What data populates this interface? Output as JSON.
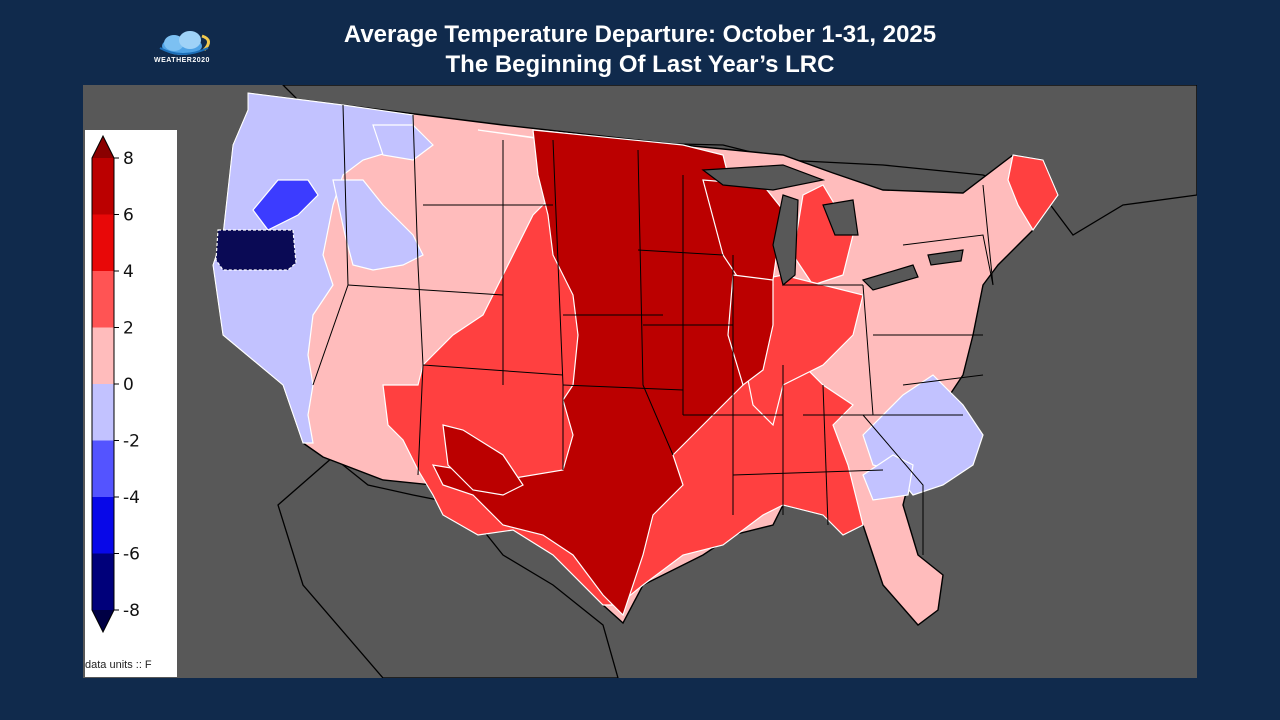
{
  "header": {
    "title_line1": "Average Temperature Departure: October 1-31, 2025",
    "title_line2": "The Beginning Of Last Year’s LRC",
    "logo_text": "WEATHER2020"
  },
  "legend": {
    "units_label": "data units :: F",
    "ticks": [
      "8",
      "6",
      "4",
      "2",
      "0",
      "-2",
      "-4",
      "-6",
      "-8"
    ],
    "bands": [
      {
        "range": "6 to 8",
        "color": "#bb0000"
      },
      {
        "range": "4 to 6",
        "color": "#e80808"
      },
      {
        "range": "2 to 4",
        "color": "#ff5454"
      },
      {
        "range": "0 to 2",
        "color": "#ffbcbc"
      },
      {
        "range": "-2 to 0",
        "color": "#c2c2ff"
      },
      {
        "range": "-4 to -2",
        "color": "#5454ff"
      },
      {
        "range": "-6 to -4",
        "color": "#0808e8"
      },
      {
        "range": "-8 to -6",
        "color": "#00007a"
      }
    ],
    "extend_max_color": "#8a0000",
    "extend_min_color": "#000044"
  },
  "map": {
    "background_color": "#585858",
    "land_outline_color": "#000000",
    "contour_line_color": "#ffffff"
  }
}
